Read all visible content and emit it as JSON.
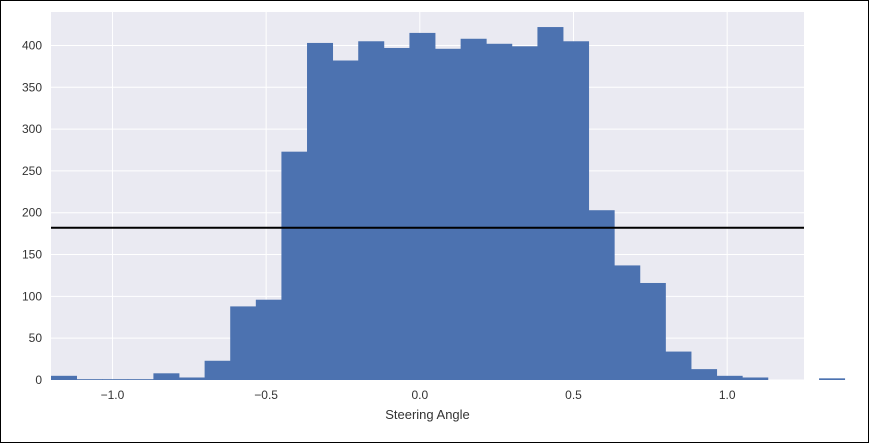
{
  "chart_data": {
    "type": "bar",
    "subtype": "histogram",
    "xlabel": "Steering Angle",
    "ylabel": "",
    "xlim": [
      -1.2,
      1.25
    ],
    "ylim": [
      0,
      440
    ],
    "bin_width": 0.0833,
    "bin_start": -1.2,
    "values": [
      5,
      1,
      1,
      1,
      8,
      3,
      23,
      88,
      96,
      273,
      403,
      382,
      405,
      397,
      415,
      396,
      408,
      402,
      399,
      422,
      405,
      203,
      137,
      116,
      34,
      13,
      5,
      3,
      0,
      0,
      2
    ],
    "threshold_line": 182,
    "x_ticks": [
      {
        "value": -1.0,
        "label": "−1.0"
      },
      {
        "value": -0.5,
        "label": "−0.5"
      },
      {
        "value": 0.0,
        "label": "0.0"
      },
      {
        "value": 0.5,
        "label": "0.5"
      },
      {
        "value": 1.0,
        "label": "1.0"
      }
    ],
    "y_ticks": [
      {
        "value": 0,
        "label": "0"
      },
      {
        "value": 50,
        "label": "50"
      },
      {
        "value": 100,
        "label": "100"
      },
      {
        "value": 150,
        "label": "150"
      },
      {
        "value": 200,
        "label": "200"
      },
      {
        "value": 250,
        "label": "250"
      },
      {
        "value": 300,
        "label": "300"
      },
      {
        "value": 350,
        "label": "350"
      },
      {
        "value": 400,
        "label": "400"
      }
    ],
    "grid": true,
    "colors": {
      "background": "#EAEAF2",
      "bar": "#4C72B0",
      "grid": "#FFFFFF",
      "threshold": "#000000"
    }
  }
}
